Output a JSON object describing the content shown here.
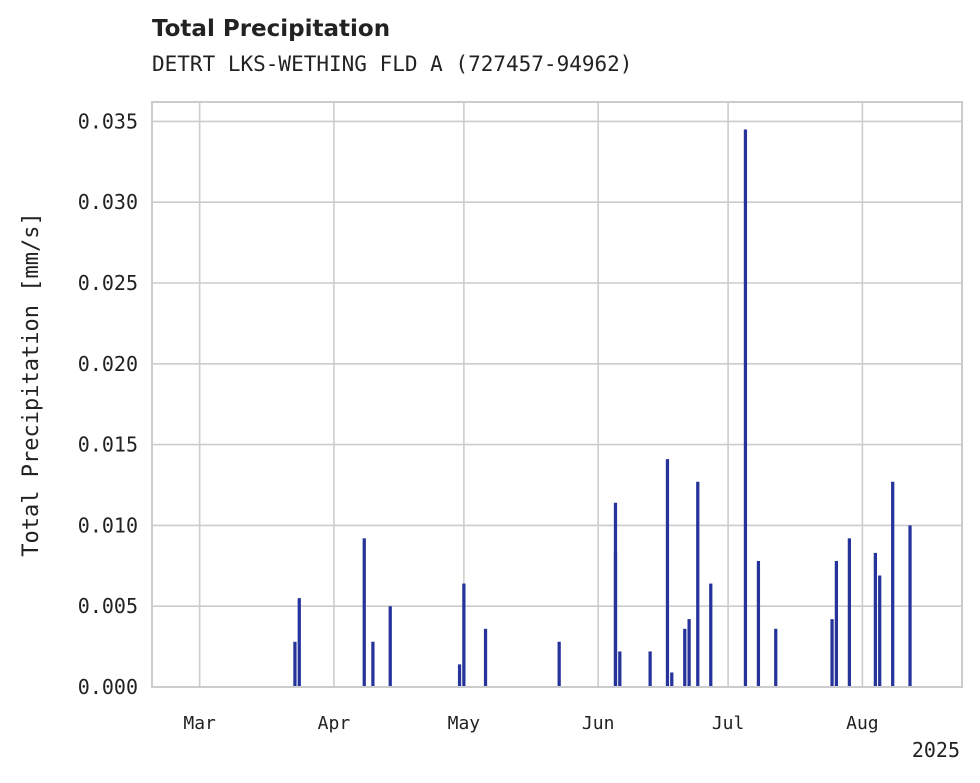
{
  "chart_data": {
    "type": "bar",
    "title": "Total Precipitation",
    "subtitle": "DETRT LKS-WETHING FLD A (727457-94962)",
    "xlabel": "",
    "ylabel": "Total Precipitation [mm/s]",
    "ylim": [
      0,
      0.0362
    ],
    "xlim": [
      "2025-02-18",
      "2025-08-24"
    ],
    "y_ticks": [
      "0.000",
      "0.005",
      "0.010",
      "0.015",
      "0.020",
      "0.025",
      "0.030",
      "0.035"
    ],
    "x_ticks": [
      {
        "label": "Mar",
        "date": "2025-03-01"
      },
      {
        "label": "Apr",
        "date": "2025-04-01"
      },
      {
        "label": "May",
        "date": "2025-05-01"
      },
      {
        "label": "Jun",
        "date": "2025-06-01"
      },
      {
        "label": "Jul",
        "date": "2025-07-01"
      },
      {
        "label": "Aug",
        "date": "2025-08-01"
      }
    ],
    "x_offset_label": "2025",
    "grid": true,
    "bar_color": "#26339a",
    "bars": [
      {
        "date": "2025-03-23",
        "value": 0.0028
      },
      {
        "date": "2025-03-24",
        "value": 0.0055
      },
      {
        "date": "2025-04-08",
        "value": 0.0092
      },
      {
        "date": "2025-04-10",
        "value": 0.0028
      },
      {
        "date": "2025-04-14",
        "value": 0.005
      },
      {
        "date": "2025-04-30",
        "value": 0.0014
      },
      {
        "date": "2025-05-01",
        "value": 0.0064
      },
      {
        "date": "2025-05-06",
        "value": 0.0036
      },
      {
        "date": "2025-05-23",
        "value": 0.0028
      },
      {
        "date": "2025-06-05",
        "value": 0.0114
      },
      {
        "date": "2025-06-05",
        "value": 0.0083
      },
      {
        "date": "2025-06-06",
        "value": 0.0022
      },
      {
        "date": "2025-06-13",
        "value": 0.0022
      },
      {
        "date": "2025-06-17",
        "value": 0.0141
      },
      {
        "date": "2025-06-18",
        "value": 0.0009
      },
      {
        "date": "2025-06-21",
        "value": 0.0036
      },
      {
        "date": "2025-06-22",
        "value": 0.0042
      },
      {
        "date": "2025-06-24",
        "value": 0.0127
      },
      {
        "date": "2025-06-27",
        "value": 0.0064
      },
      {
        "date": "2025-07-05",
        "value": 0.0345
      },
      {
        "date": "2025-07-08",
        "value": 0.0078
      },
      {
        "date": "2025-07-12",
        "value": 0.0036
      },
      {
        "date": "2025-07-25",
        "value": 0.0042
      },
      {
        "date": "2025-07-26",
        "value": 0.0078
      },
      {
        "date": "2025-07-29",
        "value": 0.0092
      },
      {
        "date": "2025-08-04",
        "value": 0.0083
      },
      {
        "date": "2025-08-05",
        "value": 0.0069
      },
      {
        "date": "2025-08-08",
        "value": 0.0127
      },
      {
        "date": "2025-08-12",
        "value": 0.01
      }
    ]
  }
}
